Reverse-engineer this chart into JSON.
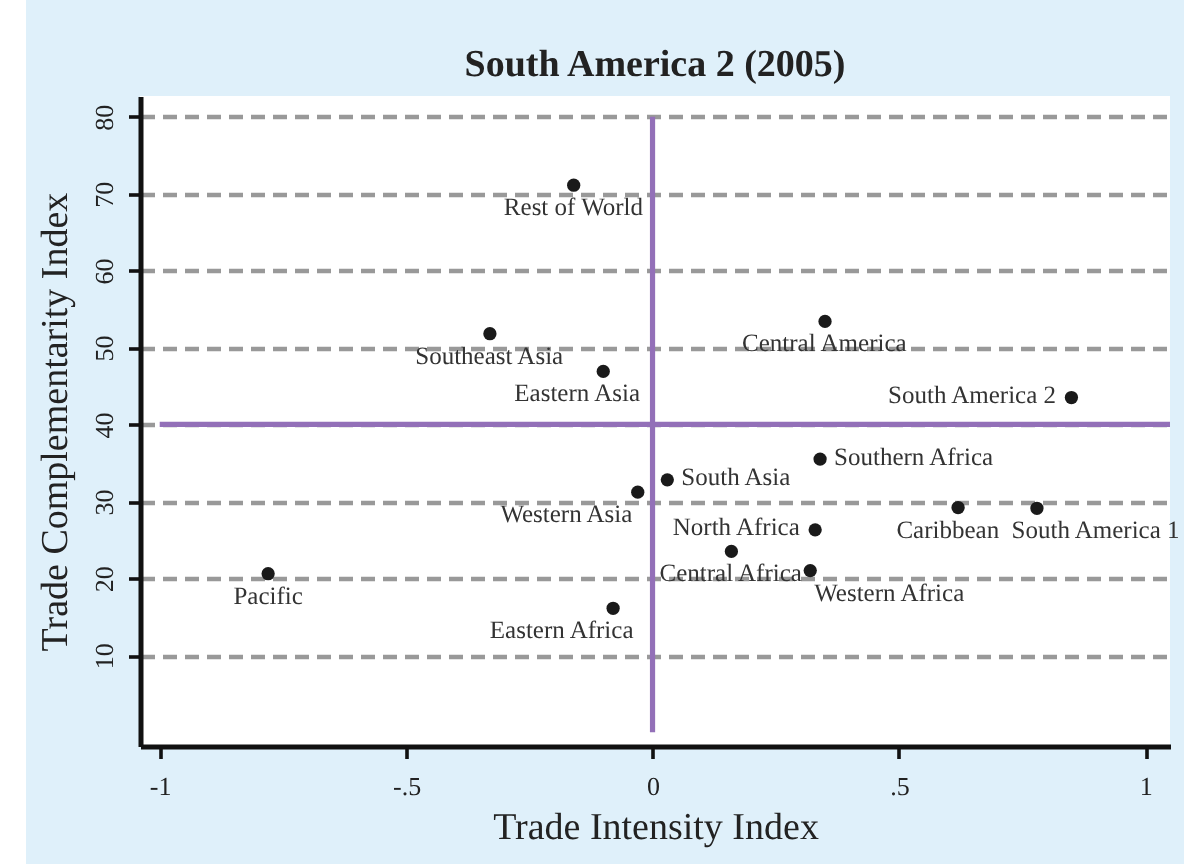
{
  "chart_data": {
    "type": "scatter",
    "title": "South America 2 (2005)",
    "xlabel": "Trade Intensity Index",
    "ylabel": "Trade Complementarity Index",
    "series": [
      {
        "type": "line",
        "marker": "none",
        "color": "#9370b8",
        "x": [
          -1,
          1.05
        ],
        "values": [
          40,
          40
        ]
      },
      {
        "type": "line",
        "marker": "none",
        "color": "#9370b8",
        "x": [
          0,
          0
        ],
        "values": [
          0,
          80
        ]
      },
      {
        "name": "Rest of World",
        "color": "#1a1a1a",
        "x": [
          -0.16
        ],
        "values": [
          71.1
        ]
      },
      {
        "name": "Southeast Asia",
        "color": "#1a1a1a",
        "x": [
          -0.33
        ],
        "values": [
          51.8
        ]
      },
      {
        "name": "Eastern Asia",
        "color": "#1a1a1a",
        "x": [
          -0.1
        ],
        "values": [
          46.9
        ]
      },
      {
        "name": "Central America",
        "color": "#1a1a1a",
        "x": [
          0.35
        ],
        "values": [
          53.4
        ]
      },
      {
        "name": "South America 2",
        "color": "#1a1a1a",
        "x": [
          0.85
        ],
        "values": [
          43.5
        ]
      },
      {
        "name": "Southern Africa",
        "color": "#1a1a1a",
        "x": [
          0.34
        ],
        "values": [
          35.5
        ]
      },
      {
        "name": "South Asia",
        "color": "#1a1a1a",
        "x": [
          0.03
        ],
        "values": [
          32.8
        ]
      },
      {
        "name": "Western Asia",
        "color": "#1a1a1a",
        "x": [
          -0.03
        ],
        "values": [
          31.2
        ]
      },
      {
        "name": "Caribbean",
        "color": "#1a1a1a",
        "x": [
          0.62
        ],
        "values": [
          29.2
        ]
      },
      {
        "name": "South America 1",
        "color": "#1a1a1a",
        "x": [
          0.78
        ],
        "values": [
          29.1
        ]
      },
      {
        "name": "North Africa",
        "color": "#1a1a1a",
        "x": [
          0.33
        ],
        "values": [
          26.3
        ]
      },
      {
        "name": "Central Africa",
        "color": "#1a1a1a",
        "x": [
          0.16
        ],
        "values": [
          23.5
        ]
      },
      {
        "name": "Western Africa",
        "color": "#1a1a1a",
        "x": [
          0.32
        ],
        "values": [
          21.0
        ]
      },
      {
        "name": "Eastern Africa",
        "color": "#1a1a1a",
        "x": [
          -0.08
        ],
        "values": [
          16.1
        ]
      },
      {
        "name": "Pacific",
        "color": "#1a1a1a",
        "x": [
          -0.78
        ],
        "values": [
          20.6
        ]
      }
    ],
    "xlim": [
      -1.04,
      1.05
    ],
    "ylim": [
      -1.8,
      82.7
    ],
    "xticks": [
      -1,
      {
        "value": -0.5,
        "label": "-.5"
      },
      0,
      {
        "value": 0.5,
        "label": ".5"
      },
      1
    ],
    "yticks": [
      10,
      20,
      30,
      40,
      50,
      60,
      70,
      80
    ],
    "grid": "y",
    "marker": "circle"
  }
}
